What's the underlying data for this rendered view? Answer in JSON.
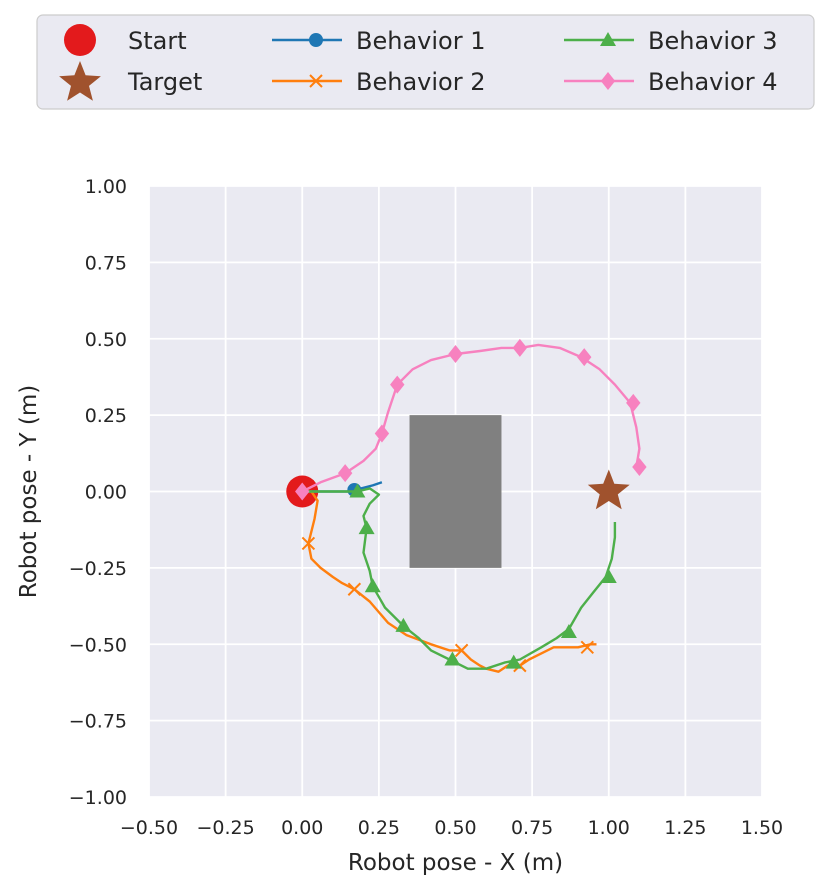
{
  "chart_data": {
    "type": "line",
    "xlabel": "Robot pose - X (m)",
    "ylabel": "Robot pose - Y (m)",
    "xlim": [
      -0.5,
      1.5
    ],
    "ylim": [
      -1.0,
      1.0
    ],
    "xticks": [
      "−0.50",
      "−0.25",
      "0.00",
      "0.25",
      "0.50",
      "0.75",
      "1.00",
      "1.25",
      "1.50"
    ],
    "yticks": [
      "−1.00",
      "−0.75",
      "−0.50",
      "−0.25",
      "0.00",
      "0.25",
      "0.50",
      "0.75",
      "1.00"
    ],
    "grid": true,
    "legend_position": "top",
    "colors": {
      "background": "#eaeaf2",
      "grid": "#ffffff",
      "start": "#e31a1c",
      "target": "#a0522d",
      "obstacle": "#808080"
    },
    "start": {
      "name": "Start",
      "x": 0.0,
      "y": 0.0
    },
    "target": {
      "name": "Target",
      "x": 1.0,
      "y": 0.0
    },
    "obstacle": {
      "x": [
        0.35,
        0.65
      ],
      "y": [
        -0.25,
        0.25
      ]
    },
    "series": [
      {
        "name": "Behavior 1",
        "color": "#1f77b4",
        "marker": "circle",
        "x": [
          0.0,
          0.05,
          0.1,
          0.15,
          0.17,
          0.2,
          0.23,
          0.26
        ],
        "y": [
          0.0,
          0.0,
          0.0,
          0.0,
          0.005,
          0.012,
          0.02,
          0.03
        ],
        "markers": [
          [
            0.17,
            0.005
          ]
        ]
      },
      {
        "name": "Behavior 2",
        "color": "#ff7f0e",
        "marker": "x",
        "x": [
          0.0,
          0.03,
          0.05,
          0.04,
          0.02,
          0.03,
          0.06,
          0.1,
          0.13,
          0.17,
          0.22,
          0.28,
          0.34,
          0.42,
          0.48,
          0.52,
          0.55,
          0.58,
          0.6,
          0.64,
          0.67,
          0.71,
          0.74,
          0.78,
          0.82,
          0.86,
          0.9,
          0.94,
          0.96
        ],
        "y": [
          0.0,
          0.0,
          -0.03,
          -0.09,
          -0.17,
          -0.22,
          -0.25,
          -0.28,
          -0.3,
          -0.32,
          -0.36,
          -0.43,
          -0.47,
          -0.5,
          -0.52,
          -0.52,
          -0.55,
          -0.57,
          -0.58,
          -0.59,
          -0.57,
          -0.57,
          -0.55,
          -0.53,
          -0.51,
          -0.51,
          -0.51,
          -0.5,
          -0.5
        ],
        "markers": [
          [
            0.02,
            -0.17
          ],
          [
            0.17,
            -0.32
          ],
          [
            0.52,
            -0.52
          ],
          [
            0.71,
            -0.57
          ],
          [
            0.93,
            -0.51
          ]
        ]
      },
      {
        "name": "Behavior 3",
        "color": "#4daf4a",
        "marker": "triangle",
        "x": [
          0.0,
          0.05,
          0.1,
          0.15,
          0.18,
          0.22,
          0.25,
          0.22,
          0.2,
          0.21,
          0.2,
          0.22,
          0.23,
          0.27,
          0.33,
          0.38,
          0.42,
          0.48,
          0.54,
          0.6,
          0.66,
          0.71,
          0.78,
          0.83,
          0.87,
          0.91,
          0.95,
          0.99,
          1.01,
          1.02,
          1.02
        ],
        "y": [
          0.0,
          0.0,
          0.0,
          0.0,
          0.0,
          0.01,
          -0.01,
          -0.04,
          -0.08,
          -0.12,
          -0.2,
          -0.26,
          -0.31,
          -0.38,
          -0.44,
          -0.48,
          -0.52,
          -0.55,
          -0.58,
          -0.58,
          -0.56,
          -0.55,
          -0.51,
          -0.48,
          -0.45,
          -0.38,
          -0.33,
          -0.28,
          -0.22,
          -0.15,
          -0.1
        ],
        "markers": [
          [
            0.18,
            0.0
          ],
          [
            0.21,
            -0.12
          ],
          [
            0.23,
            -0.31
          ],
          [
            0.33,
            -0.44
          ],
          [
            0.49,
            -0.55
          ],
          [
            0.69,
            -0.56
          ],
          [
            0.87,
            -0.46
          ],
          [
            1.0,
            -0.28
          ]
        ]
      },
      {
        "name": "Behavior 4",
        "color": "#f781bf",
        "marker": "diamond",
        "x": [
          0.0,
          0.06,
          0.14,
          0.2,
          0.24,
          0.26,
          0.28,
          0.31,
          0.36,
          0.42,
          0.5,
          0.58,
          0.65,
          0.71,
          0.77,
          0.84,
          0.91,
          0.97,
          1.02,
          1.07,
          1.09,
          1.1,
          1.09
        ],
        "y": [
          0.0,
          0.03,
          0.06,
          0.1,
          0.14,
          0.19,
          0.26,
          0.35,
          0.4,
          0.43,
          0.45,
          0.46,
          0.47,
          0.47,
          0.48,
          0.47,
          0.44,
          0.4,
          0.35,
          0.29,
          0.21,
          0.14,
          0.08
        ],
        "markers": [
          [
            0.0,
            0.0
          ],
          [
            0.14,
            0.06
          ],
          [
            0.26,
            0.19
          ],
          [
            0.31,
            0.35
          ],
          [
            0.5,
            0.45
          ],
          [
            0.71,
            0.47
          ],
          [
            0.92,
            0.44
          ],
          [
            1.08,
            0.29
          ],
          [
            1.1,
            0.08
          ]
        ]
      }
    ]
  }
}
